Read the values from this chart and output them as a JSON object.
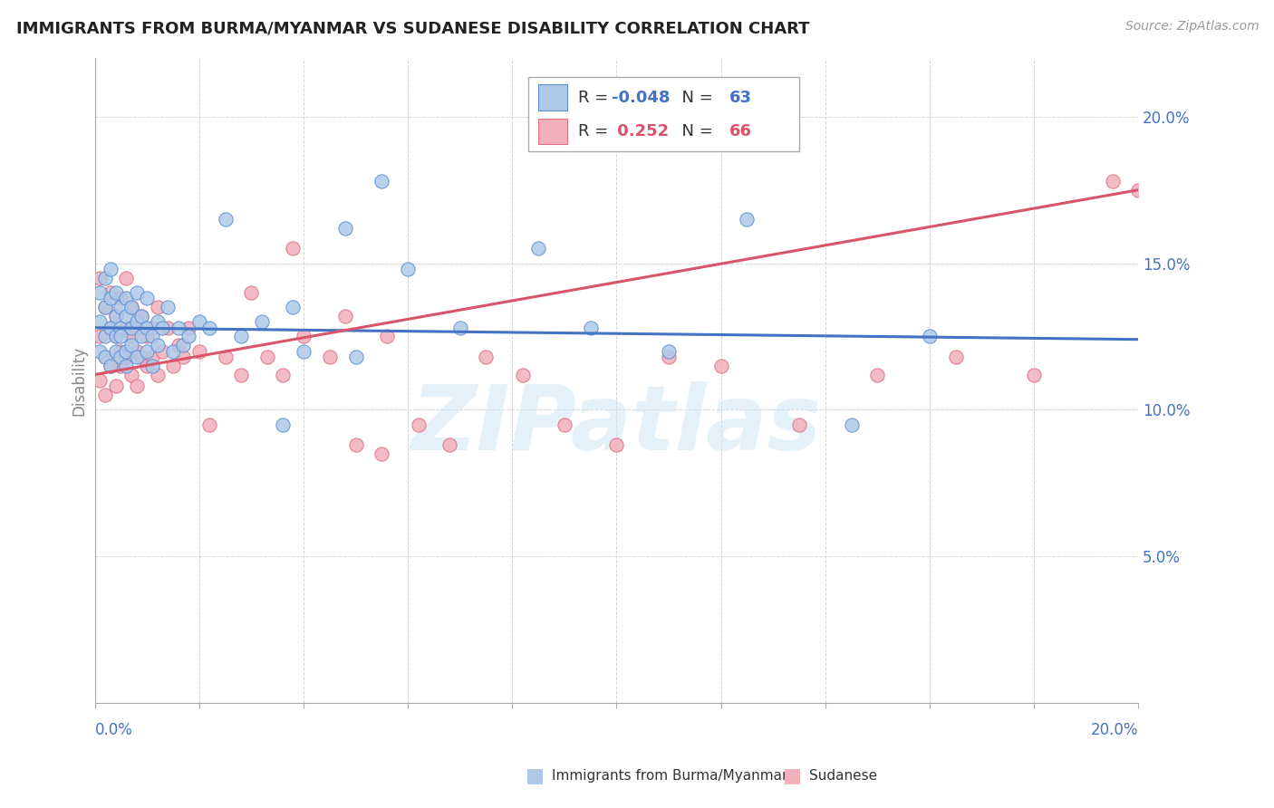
{
  "title": "IMMIGRANTS FROM BURMA/MYANMAR VS SUDANESE DISABILITY CORRELATION CHART",
  "source": "Source: ZipAtlas.com",
  "ylabel": "Disability",
  "legend_1_label": "Immigrants from Burma/Myanmar",
  "legend_2_label": "Sudanese",
  "r1": -0.048,
  "n1": 63,
  "r2": 0.252,
  "n2": 66,
  "blue_color": "#aec9e8",
  "pink_color": "#f2b0bb",
  "blue_edge_color": "#5b8fd4",
  "pink_edge_color": "#e07080",
  "blue_line_color": "#4472c4",
  "pink_line_color": "#d9536a",
  "watermark": "ZIPatlas",
  "background": "#ffffff",
  "grid_color": "#cccccc",
  "xlim": [
    0.0,
    0.2
  ],
  "ylim": [
    0.0,
    0.22
  ],
  "x_ticks": [
    0.0,
    0.02,
    0.04,
    0.06,
    0.08,
    0.1,
    0.12,
    0.14,
    0.16,
    0.18,
    0.2
  ],
  "y_ticks": [
    0.0,
    0.05,
    0.1,
    0.15,
    0.2
  ],
  "blue_scatter_x": [
    0.001,
    0.001,
    0.001,
    0.002,
    0.002,
    0.002,
    0.002,
    0.003,
    0.003,
    0.003,
    0.003,
    0.004,
    0.004,
    0.004,
    0.004,
    0.005,
    0.005,
    0.005,
    0.005,
    0.006,
    0.006,
    0.006,
    0.006,
    0.007,
    0.007,
    0.007,
    0.008,
    0.008,
    0.008,
    0.009,
    0.009,
    0.01,
    0.01,
    0.01,
    0.011,
    0.011,
    0.012,
    0.012,
    0.013,
    0.014,
    0.015,
    0.016,
    0.017,
    0.018,
    0.02,
    0.022,
    0.025,
    0.028,
    0.032,
    0.036,
    0.04,
    0.05,
    0.06,
    0.07,
    0.085,
    0.095,
    0.11,
    0.125,
    0.145,
    0.16,
    0.038,
    0.048,
    0.055
  ],
  "blue_scatter_y": [
    0.13,
    0.12,
    0.14,
    0.125,
    0.135,
    0.118,
    0.145,
    0.128,
    0.138,
    0.115,
    0.148,
    0.125,
    0.132,
    0.12,
    0.14,
    0.128,
    0.135,
    0.118,
    0.125,
    0.132,
    0.12,
    0.138,
    0.115,
    0.128,
    0.135,
    0.122,
    0.13,
    0.118,
    0.14,
    0.125,
    0.132,
    0.128,
    0.12,
    0.138,
    0.125,
    0.115,
    0.13,
    0.122,
    0.128,
    0.135,
    0.12,
    0.128,
    0.122,
    0.125,
    0.13,
    0.128,
    0.165,
    0.125,
    0.13,
    0.095,
    0.12,
    0.118,
    0.148,
    0.128,
    0.155,
    0.128,
    0.12,
    0.165,
    0.095,
    0.125,
    0.135,
    0.162,
    0.178
  ],
  "pink_scatter_x": [
    0.001,
    0.001,
    0.001,
    0.002,
    0.002,
    0.002,
    0.003,
    0.003,
    0.003,
    0.004,
    0.004,
    0.004,
    0.005,
    0.005,
    0.005,
    0.006,
    0.006,
    0.006,
    0.007,
    0.007,
    0.007,
    0.008,
    0.008,
    0.008,
    0.009,
    0.009,
    0.01,
    0.01,
    0.011,
    0.011,
    0.012,
    0.012,
    0.013,
    0.014,
    0.015,
    0.016,
    0.017,
    0.018,
    0.02,
    0.022,
    0.025,
    0.028,
    0.03,
    0.033,
    0.036,
    0.04,
    0.045,
    0.05,
    0.056,
    0.062,
    0.068,
    0.075,
    0.082,
    0.09,
    0.1,
    0.11,
    0.12,
    0.135,
    0.15,
    0.165,
    0.18,
    0.195,
    0.038,
    0.048,
    0.2,
    0.055
  ],
  "pink_scatter_y": [
    0.125,
    0.11,
    0.145,
    0.118,
    0.135,
    0.105,
    0.128,
    0.14,
    0.115,
    0.125,
    0.132,
    0.108,
    0.12,
    0.138,
    0.115,
    0.128,
    0.118,
    0.145,
    0.125,
    0.112,
    0.135,
    0.12,
    0.128,
    0.108,
    0.118,
    0.132,
    0.125,
    0.115,
    0.128,
    0.118,
    0.112,
    0.135,
    0.12,
    0.128,
    0.115,
    0.122,
    0.118,
    0.128,
    0.12,
    0.095,
    0.118,
    0.112,
    0.14,
    0.118,
    0.112,
    0.125,
    0.118,
    0.088,
    0.125,
    0.095,
    0.088,
    0.118,
    0.112,
    0.095,
    0.088,
    0.118,
    0.115,
    0.095,
    0.112,
    0.118,
    0.112,
    0.178,
    0.155,
    0.132,
    0.175,
    0.085
  ],
  "blue_trend_start": 0.128,
  "blue_trend_end": 0.124,
  "pink_trend_start": 0.112,
  "pink_trend_end": 0.175
}
